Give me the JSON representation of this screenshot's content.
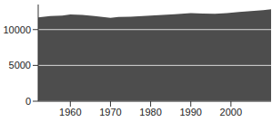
{
  "chart_data": {
    "type": "area",
    "x": [
      1952,
      1955,
      1958,
      1960,
      1963,
      1966,
      1969,
      1970,
      1972,
      1975,
      1978,
      1980,
      1983,
      1986,
      1990,
      1993,
      1996,
      1999,
      2002,
      2005,
      2008,
      2010
    ],
    "values": [
      11700,
      11900,
      11950,
      12100,
      12050,
      11900,
      11700,
      11650,
      11750,
      11800,
      11900,
      11950,
      12050,
      12150,
      12300,
      12250,
      12200,
      12300,
      12450,
      12600,
      12700,
      12850
    ],
    "color": "#4d4d4d",
    "xlim": [
      1952,
      2010
    ],
    "xticks": [
      1960,
      1970,
      1980,
      1990,
      2000
    ],
    "ylim": [
      0,
      13500
    ],
    "yticks": [
      0,
      5000,
      10000
    ],
    "grid": true
  }
}
